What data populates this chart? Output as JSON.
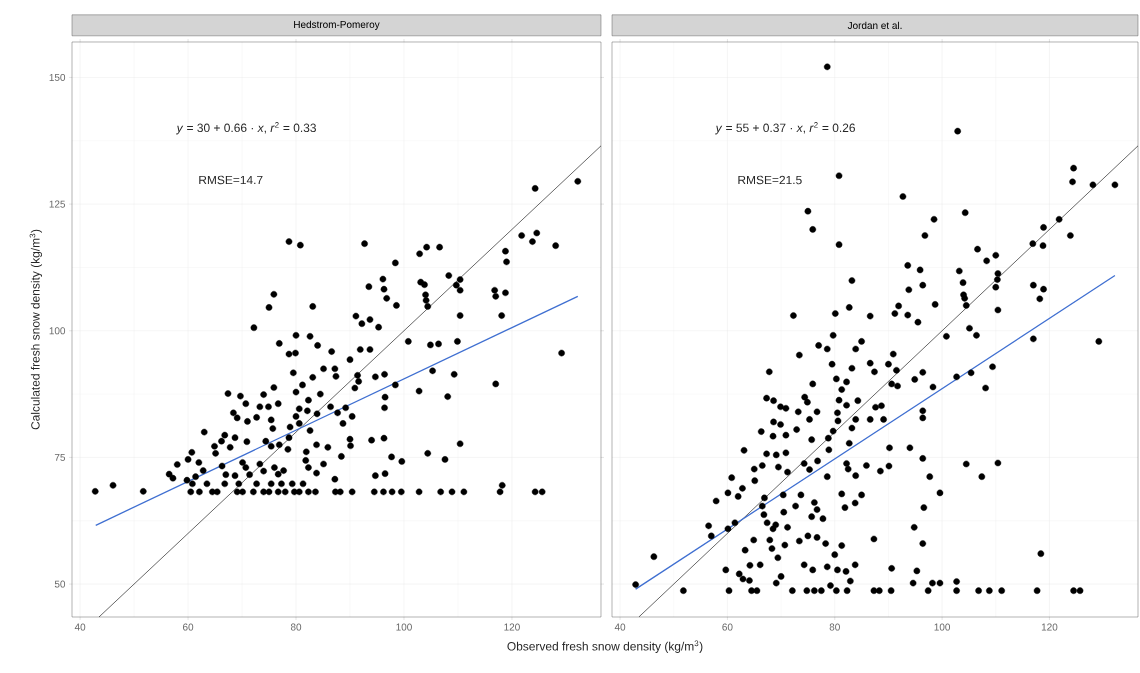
{
  "chart_data": [
    {
      "type": "scatter",
      "title": "Hedstrom-Pomeroy",
      "xlabel": "Observed fresh snow density (kg/m$^{3}$)",
      "ylabel": "Calculated fresh snow density (kg/m$^{3}$)",
      "xlim": [
        38.5,
        136.5
      ],
      "ylim": [
        43.5,
        157
      ],
      "xticks": [
        40,
        60,
        80,
        100,
        120
      ],
      "yticks": [
        50,
        75,
        100,
        125,
        150
      ],
      "grid": true,
      "marker": "circle",
      "annotations": [
        "*y* = 30 + 0.66 · *x*,  *r*$^{2}$ = 0.33",
        "RMSE=14.7"
      ],
      "series": [
        {
          "color": "#000000",
          "x": [
            132.2,
            124.3,
            78.7,
            80.8,
            92.7,
            106.6,
            104.2,
            102.9,
            121.8,
            124.6,
            123.8,
            128.1,
            118.8,
            119.0,
            98.4,
            108.3,
            110.4,
            96.1,
            96.3,
            96.8,
            93.5,
            103.1,
            103.8,
            104.0,
            104.1,
            104.4,
            109.7,
            110.4,
            116.8,
            117.0,
            118.8,
            98.6,
            83.1,
            75.9,
            75.0,
            91.1,
            93.7,
            110.4,
            118.1,
            129.2,
            72.2,
            92.2,
            95.3,
            80.0,
            82.6,
            84.0,
            76.9,
            78.7,
            79.9,
            86.6,
            91.9,
            93.7,
            90.0,
            100.8,
            104.9,
            106.4,
            109.9,
            105.3,
            109.3,
            117.0,
            102.8,
            108.1,
            98.4,
            94.7,
            96.4,
            96.5,
            96.4,
            85.1,
            87.2,
            87.4,
            91.4,
            91.6,
            90.9,
            79.5,
            81.2,
            83.1,
            84.5,
            75.9,
            67.4,
            69.7,
            74.0,
            70.7,
            73.3,
            74.9,
            76.7,
            80.0,
            82.3,
            80.6,
            82.1,
            80.0,
            83.9,
            86.4,
            89.2,
            87.7,
            90.4,
            88.7,
            68.4,
            69.1,
            71.0,
            72.7,
            75.4,
            75.7,
            78.9,
            80.6,
            82.6,
            63.0,
            66.8,
            66.2,
            68.7,
            70.9,
            64.9,
            65.1,
            67.8,
            74.4,
            75.4,
            76.9,
            78.7,
            78.5,
            83.8,
            81.9,
            85.9,
            90.0,
            90.1,
            94.0,
            96.3,
            110.4,
            88.4,
            97.7,
            99.6,
            104.4,
            107.6,
            60.7,
            60.0,
            62.0,
            58.0,
            62.8,
            56.5,
            57.2,
            59.8,
            61.4,
            66.3,
            67.0,
            70.1,
            70.7,
            68.7,
            71.4,
            73.3,
            74.0,
            76.0,
            76.7,
            77.7,
            81.8,
            82.3,
            83.8,
            85.1,
            87.2,
            94.7,
            96.5,
            118.2,
            46.1,
            42.8,
            51.7,
            60.5,
            62.1,
            64.5,
            65.4,
            69.1,
            70.1,
            72.1,
            74.0,
            75.0,
            76.7,
            78.0,
            79.7,
            80.6,
            82.3,
            83.6,
            87.3,
            88.2,
            90.4,
            94.5,
            96.2,
            97.8,
            99.5,
            102.8,
            106.8,
            108.9,
            111.1,
            117.8,
            124.3,
            125.6,
            60.8,
            63.5,
            66.8,
            69.4,
            72.7,
            75.4,
            77.3,
            79.3,
            81.3
          ],
          "values": [
            129.5,
            128.1,
            117.6,
            116.9,
            117.2,
            116.5,
            116.5,
            115.2,
            118.8,
            119.3,
            117.6,
            116.8,
            115.7,
            113.6,
            113.4,
            110.9,
            110.1,
            110.2,
            108.2,
            106.4,
            108.7,
            109.6,
            109.1,
            107.1,
            106.0,
            104.8,
            109.0,
            108.0,
            108.0,
            106.8,
            107.5,
            105.0,
            104.8,
            107.2,
            104.6,
            102.9,
            102.2,
            103.0,
            103.0,
            95.6,
            100.6,
            101.4,
            100.7,
            99.1,
            98.9,
            97.1,
            97.5,
            95.4,
            95.6,
            95.9,
            96.3,
            96.3,
            94.3,
            97.9,
            97.2,
            97.4,
            97.9,
            92.1,
            91.4,
            89.5,
            88.1,
            87.0,
            89.3,
            90.9,
            91.4,
            86.9,
            84.8,
            92.5,
            92.5,
            91.0,
            91.2,
            90.0,
            88.7,
            91.7,
            89.3,
            90.8,
            87.5,
            88.8,
            87.6,
            87.1,
            87.4,
            85.6,
            85.0,
            85.0,
            85.6,
            87.9,
            86.3,
            84.6,
            84.2,
            83.1,
            83.6,
            85.0,
            84.8,
            83.8,
            83.1,
            81.7,
            83.8,
            82.8,
            82.1,
            82.9,
            82.4,
            80.7,
            81.0,
            81.7,
            80.3,
            80.0,
            79.4,
            78.2,
            78.9,
            78.1,
            77.2,
            75.8,
            77.0,
            78.2,
            77.2,
            77.5,
            78.9,
            76.6,
            77.5,
            76.1,
            77.0,
            78.6,
            77.3,
            78.4,
            78.8,
            77.7,
            75.2,
            75.1,
            74.2,
            75.8,
            74.6,
            76.0,
            74.6,
            74.0,
            73.6,
            72.4,
            71.7,
            70.9,
            70.5,
            71.2,
            73.3,
            71.6,
            74.0,
            73.0,
            71.4,
            71.6,
            73.7,
            72.3,
            73.0,
            71.7,
            72.4,
            74.4,
            73.0,
            71.9,
            73.7,
            70.7,
            71.4,
            71.8,
            69.5,
            69.5,
            68.3,
            68.3,
            68.2,
            68.2,
            68.2,
            68.2,
            68.2,
            68.2,
            68.2,
            68.2,
            68.2,
            68.2,
            68.2,
            68.2,
            68.2,
            68.2,
            68.2,
            68.2,
            68.2,
            68.2,
            68.2,
            68.2,
            68.2,
            68.2,
            68.2,
            68.2,
            68.2,
            68.2,
            68.2,
            68.2,
            68.2,
            69.8,
            69.8,
            69.8,
            69.8,
            69.8,
            69.8,
            69.8,
            69.8,
            69.8
          ]
        },
        {
          "type": "line",
          "marker": "none",
          "color": "#000000",
          "x": [
            43.5,
            136.5
          ],
          "values": [
            43.5,
            136.5
          ]
        },
        {
          "type": "line",
          "marker": "none",
          "color": "#3f6fd1",
          "x": [
            42.9,
            132.2
          ],
          "values": [
            61.6,
            106.8
          ]
        }
      ]
    },
    {
      "type": "scatter",
      "title": "Jordan et al.",
      "xlim": [
        38.5,
        136.5
      ],
      "ylim": [
        43.5,
        157
      ],
      "xticks": [
        40,
        60,
        80,
        100,
        120
      ],
      "yticks": [
        50,
        75,
        100,
        125,
        150
      ],
      "grid": true,
      "marker": "circle",
      "tick_labels": "x",
      "annotations": [
        "*y* = 55 + 0.37 · *x*,  *r*$^{2}$ = 0.26",
        "RMSE=21.5"
      ],
      "series": [
        {
          "color": "#000000",
          "x": [
            78.6,
            102.9,
            80.8,
            124.5,
            124.3,
            128.1,
            132.2,
            75.0,
            75.9,
            80.8,
            92.7,
            104.3,
            98.5,
            96.8,
            121.8,
            118.9,
            116.9,
            118.8,
            123.9,
            106.6,
            110.0,
            108.3,
            93.6,
            95.9,
            83.2,
            93.8,
            96.4,
            103.2,
            103.9,
            104.0,
            104.2,
            104.5,
            110.4,
            110.3,
            110.0,
            110.4,
            117.0,
            118.9,
            118.2,
            98.7,
            82.7,
            80.1,
            72.3,
            86.6,
            91.9,
            91.2,
            93.6,
            129.2,
            117.0,
            95.5,
            100.8,
            105.1,
            106.4,
            109.4,
            108.1,
            105.4,
            102.7,
            98.3,
            94.9,
            96.4,
            90.9,
            90.0,
            91.5,
            90.6,
            91.7,
            86.6,
            87.4,
            85.0,
            83.9,
            83.2,
            79.7,
            77.0,
            78.6,
            73.4,
            79.5,
            67.8,
            75.9,
            80.3,
            82.2,
            81.3,
            80.8,
            84.3,
            82.2,
            74.4,
            74.9,
            67.3,
            68.6,
            69.9,
            70.9,
            73.2,
            76.7,
            80.5,
            75.3,
            80.6,
            83.9,
            86.6,
            89.1,
            87.6,
            88.7,
            96.4,
            96.4,
            68.6,
            69.9,
            66.3,
            68.5,
            70.9,
            72.9,
            75.7,
            79.7,
            78.8,
            83.2,
            82.7,
            78.9,
            90.2,
            94.0,
            63.1,
            67.3,
            69.1,
            70.9,
            96.4,
            104.5,
            110.4,
            107.4,
            65.0,
            66.5,
            69.5,
            71.2,
            65.1,
            60.8,
            74.3,
            75.3,
            76.8,
            78.6,
            82.2,
            82.5,
            83.9,
            85.9,
            88.5,
            90.1,
            97.7,
            62.8,
            60.1,
            62.0,
            57.9,
            99.6,
            66.9,
            70.4,
            73.7,
            72.7,
            70.5,
            76.2,
            76.7,
            75.7,
            77.8,
            81.3,
            85.0,
            83.8,
            81.9,
            96.6,
            66.5,
            66.8,
            67.4,
            68.5,
            69.0,
            71.2,
            61.4,
            60.1,
            56.5,
            57.0,
            94.8,
            73.4,
            75.0,
            76.7,
            78.3,
            81.3,
            87.3,
            96.4,
            67.9,
            68.3,
            69.4,
            70.7,
            64.9,
            63.3,
            80.0,
            118.4,
            46.3,
            66.1,
            64.2,
            59.7,
            62.2,
            62.9,
            74.3,
            75.9,
            78.6,
            80.5,
            82.1,
            83.8,
            82.9,
            90.6,
            95.3,
            64.1,
            69.1,
            70.0,
            79.2,
            94.6,
            98.2,
            99.6,
            102.7,
            42.9,
            51.8,
            60.3,
            64.5,
            65.5,
            72.1,
            74.8,
            76.2,
            77.5,
            80.3,
            82.3,
            87.3,
            88.3,
            90.5,
            97.4,
            102.7,
            106.8,
            108.8,
            111.1,
            117.7,
            124.5,
            125.7
          ],
          "values": [
            152.1,
            139.4,
            130.6,
            132.1,
            129.4,
            128.8,
            128.8,
            123.6,
            120.0,
            117.0,
            126.5,
            123.3,
            122.0,
            118.8,
            122.0,
            120.4,
            117.2,
            116.8,
            118.8,
            116.1,
            114.9,
            113.8,
            112.9,
            112.0,
            109.9,
            108.1,
            109.0,
            111.8,
            109.5,
            107.1,
            106.4,
            105.0,
            111.3,
            110.1,
            108.6,
            104.1,
            109.0,
            108.2,
            106.3,
            105.2,
            104.6,
            103.4,
            103.0,
            102.9,
            104.9,
            103.4,
            103.1,
            97.9,
            98.4,
            101.7,
            98.9,
            100.5,
            99.1,
            92.9,
            88.7,
            91.7,
            90.9,
            88.9,
            90.4,
            91.8,
            95.4,
            93.4,
            92.2,
            89.5,
            89.1,
            93.6,
            91.9,
            97.9,
            96.4,
            92.6,
            99.1,
            97.1,
            96.4,
            95.2,
            93.4,
            91.9,
            89.5,
            90.5,
            89.9,
            88.4,
            86.3,
            86.2,
            85.3,
            86.9,
            85.9,
            86.7,
            86.2,
            85.0,
            84.7,
            84.0,
            84.0,
            83.8,
            82.5,
            82.2,
            82.5,
            82.5,
            82.5,
            84.9,
            85.2,
            84.2,
            82.8,
            82.0,
            81.5,
            80.1,
            79.2,
            79.4,
            80.5,
            78.5,
            80.2,
            78.8,
            80.8,
            77.8,
            76.5,
            76.9,
            76.9,
            76.4,
            75.7,
            75.5,
            75.9,
            74.8,
            73.7,
            73.9,
            71.2,
            72.7,
            73.4,
            73.1,
            72.1,
            70.4,
            71.0,
            73.8,
            72.6,
            74.3,
            71.2,
            73.8,
            72.7,
            71.4,
            73.4,
            72.3,
            73.3,
            71.2,
            68.9,
            68.0,
            67.3,
            66.4,
            68.0,
            67.0,
            67.6,
            67.6,
            65.4,
            64.2,
            66.1,
            64.7,
            63.3,
            62.9,
            67.8,
            67.6,
            66.0,
            65.1,
            65.1,
            65.4,
            63.7,
            62.1,
            60.9,
            61.7,
            61.2,
            62.1,
            60.9,
            61.5,
            59.5,
            61.2,
            58.5,
            59.5,
            59.2,
            58.0,
            57.6,
            58.9,
            58.0,
            58.7,
            57.0,
            55.2,
            57.7,
            58.7,
            56.7,
            55.8,
            56.0,
            55.4,
            53.8,
            53.7,
            52.8,
            52.0,
            51.0,
            53.8,
            52.8,
            53.4,
            52.8,
            52.5,
            53.8,
            50.6,
            53.1,
            52.6,
            50.7,
            50.2,
            51.5,
            49.7,
            50.2,
            50.2,
            50.2,
            50.5,
            49.9,
            48.7,
            48.7,
            48.7,
            48.7,
            48.7,
            48.7,
            48.7,
            48.7,
            48.7,
            48.7,
            48.7,
            48.7,
            48.7,
            48.7,
            48.7,
            48.7,
            48.7,
            48.7,
            48.7,
            48.7,
            48.7
          ]
        },
        {
          "type": "line",
          "marker": "none",
          "color": "#000000",
          "x": [
            43.5,
            136.5
          ],
          "values": [
            43.5,
            136.5
          ]
        },
        {
          "type": "line",
          "marker": "none",
          "color": "#3f6fd1",
          "x": [
            42.9,
            132.2
          ],
          "values": [
            49.0,
            110.9
          ]
        }
      ]
    }
  ]
}
